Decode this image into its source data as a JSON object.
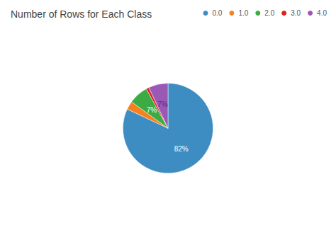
{
  "chart_data": {
    "type": "pie",
    "title": "Number of Rows for Each Class",
    "categories": [
      "0.0",
      "1.0",
      "2.0",
      "3.0",
      "4.0"
    ],
    "values": [
      82,
      3,
      7,
      1,
      7
    ],
    "value_labels": [
      "82%",
      null,
      "7%",
      null,
      "7%"
    ],
    "colors": [
      "#3d8dc3",
      "#f5821f",
      "#3dab44",
      "#e02020",
      "#9b59b6"
    ],
    "data_labels": true,
    "legend": "upper right"
  }
}
